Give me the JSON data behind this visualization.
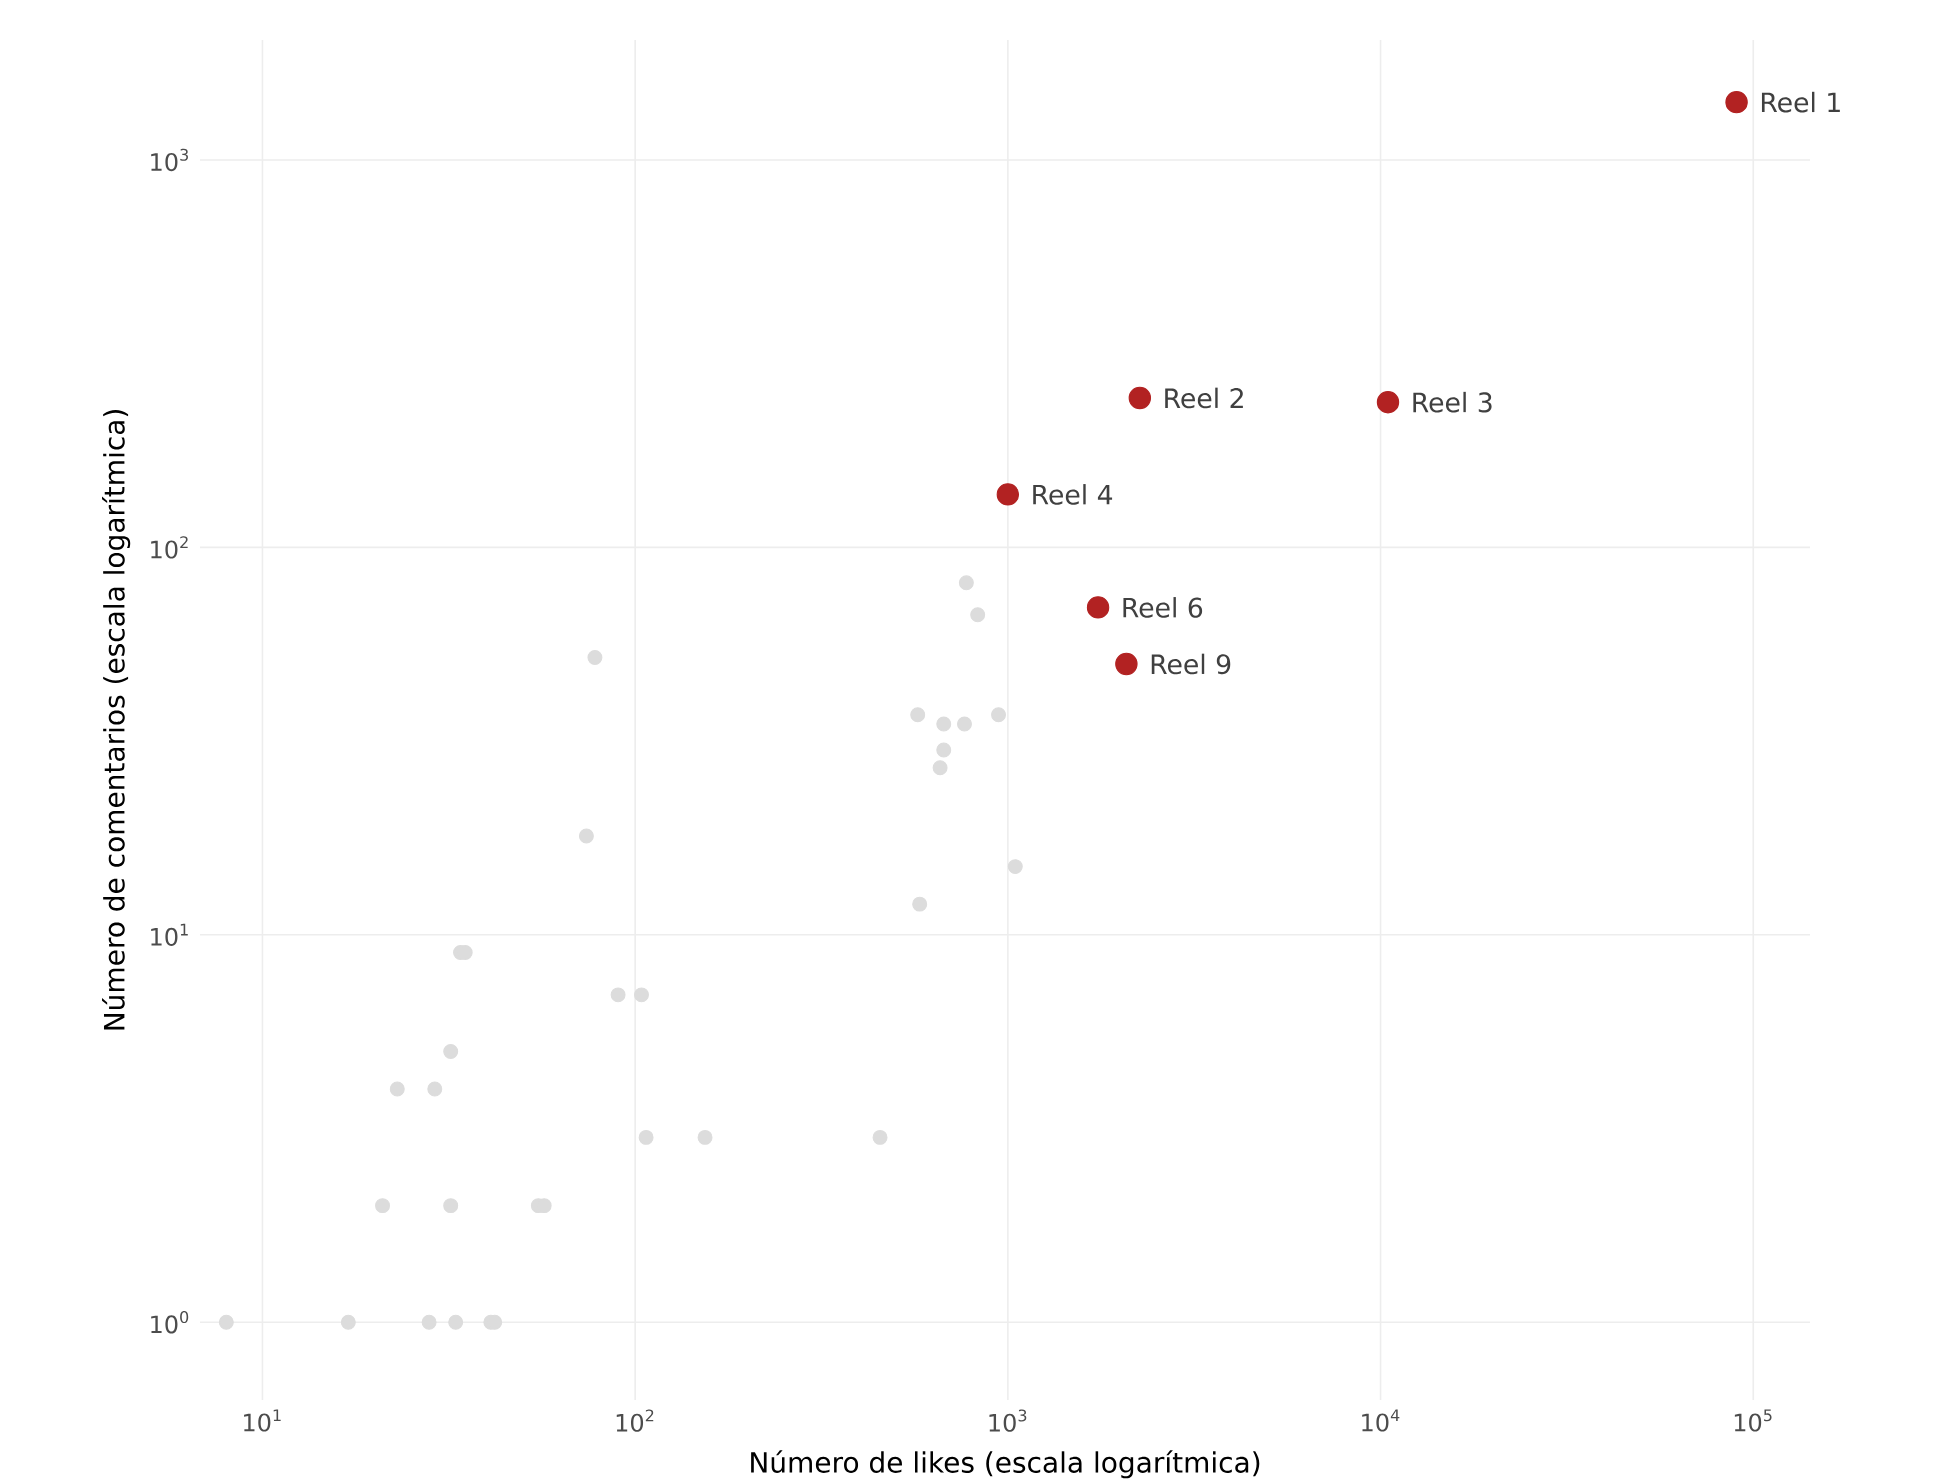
{
  "chart_data": {
    "type": "scatter",
    "xlabel": "Número de likes (escala logarítmica)",
    "ylabel": "Número de comentarios (escala logarítmica)",
    "log": "xy",
    "grid": true,
    "xlim": [
      6.8,
      142000
    ],
    "ylim": [
      0.63,
      2040
    ],
    "xticks": [
      {
        "value": 10,
        "label": "10$^{1}$"
      },
      {
        "value": 100,
        "label": "10$^{2}$"
      },
      {
        "value": 1000,
        "label": "10$^{3}$"
      },
      {
        "value": 10000,
        "label": "10$^{4}$"
      },
      {
        "value": 100000,
        "label": "10$^{5}$"
      }
    ],
    "yticks": [
      {
        "value": 1,
        "label": "10$^{0}$"
      },
      {
        "value": 10,
        "label": "10$^{1}$"
      },
      {
        "value": 100,
        "label": "10$^{2}$"
      },
      {
        "value": 1000,
        "label": "10$^{3}$"
      }
    ],
    "series": [
      {
        "color": "#dcdcdc",
        "x": [
          8,
          17,
          28,
          33,
          41,
          42,
          21,
          32,
          55,
          57,
          23,
          29,
          32,
          34,
          35,
          74,
          90,
          104,
          78,
          107,
          154,
          454,
          580,
          1047,
          573,
          673,
          765,
          944,
          673,
          658,
          774,
          830
        ],
        "values": [
          1,
          1,
          1,
          1,
          1,
          1,
          2,
          2,
          2,
          2,
          4,
          4,
          5,
          9,
          9,
          18,
          7,
          7,
          52,
          3,
          3,
          3,
          12,
          15,
          37,
          35,
          35,
          37,
          30,
          27,
          81,
          67
        ]
      },
      {
        "color": "#b22222",
        "x": [
          90200,
          2260,
          10470,
          1000,
          1746,
          2080
        ],
        "values": [
          1410,
          243,
          237,
          137,
          70,
          50
        ]
      }
    ],
    "annotations": [
      {
        "text": "Reel 1",
        "x": 90200,
        "y": 1410
      },
      {
        "text": "Reel 2",
        "x": 2260,
        "y": 243
      },
      {
        "text": "Reel 3",
        "x": 10470,
        "y": 237
      },
      {
        "text": "Reel 4",
        "x": 1000,
        "y": 137
      },
      {
        "text": "Reel 6",
        "x": 1746,
        "y": 70
      },
      {
        "text": "Reel 9",
        "x": 2080,
        "y": 50
      }
    ]
  }
}
